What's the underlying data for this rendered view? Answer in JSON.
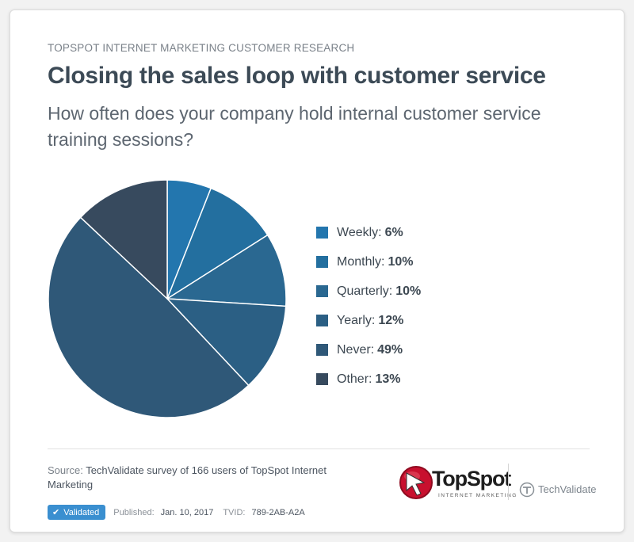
{
  "header": {
    "eyebrow": "TOPSPOT INTERNET MARKETING CUSTOMER RESEARCH",
    "title": "Closing the sales loop with customer service",
    "question": "How often does your company hold internal customer service training sessions?"
  },
  "chart_data": {
    "type": "pie",
    "title": "Closing the sales loop with customer service",
    "subtitle": "How often does your company hold internal customer service training sessions?",
    "legend_position": "right",
    "slices": [
      {
        "label": "Weekly:",
        "value": 6,
        "display": "6%",
        "color": "#2376ae"
      },
      {
        "label": "Monthly:",
        "value": 10,
        "display": "10%",
        "color": "#236f9f"
      },
      {
        "label": "Quarterly:",
        "value": 10,
        "display": "10%",
        "color": "#2a6891"
      },
      {
        "label": "Yearly:",
        "value": 12,
        "display": "12%",
        "color": "#2b5f84"
      },
      {
        "label": "Never:",
        "value": 49,
        "display": "49%",
        "color": "#2f5878"
      },
      {
        "label": "Other:",
        "value": 13,
        "display": "13%",
        "color": "#374a5e"
      }
    ]
  },
  "footer": {
    "source_label": "Source:",
    "source_text": "TechValidate survey of 166 users of TopSpot Internet Marketing",
    "badge": "Validated",
    "published_label": "Published:",
    "published_date": "Jan. 10, 2017",
    "tvid_label": "TVID:",
    "tvid": "789-2AB-A2A"
  },
  "logos": {
    "topspot_name": "TopSpot",
    "topspot_tagline": "INTERNET MARKETING",
    "techvalidate_name": "TechValidate",
    "topspot_red": "#c8102e"
  }
}
